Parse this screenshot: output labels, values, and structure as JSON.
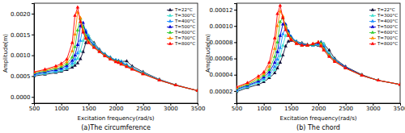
{
  "chart_data": [
    {
      "type": "line",
      "title": "(a)The circumference",
      "xlabel": "Excitation frequency(rad/s)",
      "ylabel": "Amplitude(m)",
      "x": [
        500,
        700,
        900,
        1000,
        1100,
        1200,
        1250,
        1300,
        1350,
        1400,
        1450,
        1500,
        1600,
        1700,
        1800,
        1900,
        2000,
        2050,
        2100,
        2200,
        2300,
        2500,
        2800,
        3100,
        3500
      ],
      "xlim": [
        500,
        3500
      ],
      "xticks": [
        500,
        1000,
        1500,
        2000,
        2500,
        3000,
        3500
      ],
      "ylim": [
        -0.00015,
        0.00225
      ],
      "yticks": [
        {
          "value": 0,
          "label": "0.0000"
        },
        0.0005,
        {
          "value": 0.001,
          "label": "0.0010"
        },
        0.0015,
        {
          "value": 0.002,
          "label": "0.0020"
        }
      ],
      "grid": false,
      "legend": "upper right",
      "marker": "triangle",
      "line_style": "solid",
      "series": [
        {
          "name": "T=22°C",
          "color": "#14143c",
          "values": [
            0.0005,
            0.00054,
            0.00058,
            0.00061,
            0.00065,
            0.00071,
            0.00075,
            0.00081,
            0.00091,
            0.00108,
            0.0013,
            0.00145,
            0.0013,
            0.00114,
            0.00103,
            0.00095,
            0.00088,
            0.00085,
            0.00085,
            0.00086,
            0.00074,
            0.0006,
            0.00042,
            0.00029,
            0.00015
          ]
        },
        {
          "name": "T=300°C",
          "color": "#40e0d0",
          "values": [
            0.00052,
            0.00056,
            0.0006,
            0.00063,
            0.00068,
            0.00076,
            0.00082,
            0.00092,
            0.0011,
            0.00135,
            0.00158,
            0.00148,
            0.00127,
            0.00113,
            0.00103,
            0.00095,
            0.00089,
            0.00087,
            0.00086,
            0.00078,
            0.0007,
            0.00058,
            0.00041,
            0.00028,
            0.00015
          ]
        },
        {
          "name": "T=400°C",
          "color": "#1e90ff",
          "values": [
            0.00053,
            0.00058,
            0.00062,
            0.00066,
            0.00071,
            0.00081,
            0.0009,
            0.00105,
            0.00135,
            0.00168,
            0.0016,
            0.00143,
            0.00124,
            0.00112,
            0.00102,
            0.00094,
            0.00088,
            0.00087,
            0.00084,
            0.00076,
            0.00069,
            0.00057,
            0.00041,
            0.00028,
            0.00015
          ]
        },
        {
          "name": "T=500°C",
          "color": "#0000cd",
          "values": [
            0.00055,
            0.0006,
            0.00065,
            0.00069,
            0.00075,
            0.00087,
            0.001,
            0.00125,
            0.0017,
            0.00178,
            0.00155,
            0.00139,
            0.00122,
            0.00111,
            0.00101,
            0.00093,
            0.00087,
            0.00086,
            0.00082,
            0.00075,
            0.00068,
            0.00056,
            0.0004,
            0.00028,
            0.00015
          ]
        },
        {
          "name": "T=600°C",
          "color": "#32cd32",
          "values": [
            0.00057,
            0.00062,
            0.00068,
            0.00072,
            0.00079,
            0.00095,
            0.0012,
            0.0016,
            0.00188,
            0.00168,
            0.00147,
            0.00135,
            0.0012,
            0.0011,
            0.001,
            0.00092,
            0.00086,
            0.00085,
            0.0008,
            0.00074,
            0.00067,
            0.00056,
            0.0004,
            0.00028,
            0.00015
          ]
        },
        {
          "name": "T=700°C",
          "color": "#ff8c00",
          "values": [
            0.00059,
            0.00064,
            0.00071,
            0.00076,
            0.00084,
            0.0011,
            0.0015,
            0.00203,
            0.0019,
            0.0016,
            0.00143,
            0.00132,
            0.00119,
            0.00109,
            0.00099,
            0.00091,
            0.00085,
            0.00083,
            0.00079,
            0.00073,
            0.00067,
            0.00055,
            0.0004,
            0.00028,
            0.00015
          ]
        },
        {
          "name": "T=800°C",
          "color": "#ff0000",
          "values": [
            0.0006,
            0.00066,
            0.00074,
            0.0008,
            0.0009,
            0.0013,
            0.00195,
            0.00215,
            0.0018,
            0.00155,
            0.0014,
            0.0013,
            0.00118,
            0.00108,
            0.00098,
            0.0009,
            0.00084,
            0.00082,
            0.00078,
            0.00072,
            0.00066,
            0.00055,
            0.0004,
            0.00028,
            0.00015
          ]
        }
      ]
    },
    {
      "type": "line",
      "title": "(b) The chord",
      "xlabel": "Excitation frequency(rad/s)",
      "ylabel": "Amplitude(m)",
      "x": [
        500,
        700,
        900,
        1000,
        1100,
        1200,
        1250,
        1300,
        1350,
        1400,
        1450,
        1500,
        1600,
        1700,
        1800,
        1900,
        2000,
        2050,
        2100,
        2200,
        2300,
        2500,
        2800,
        3100,
        3500
      ],
      "xlim": [
        500,
        3500
      ],
      "xticks": [
        500,
        1000,
        1500,
        2000,
        2500,
        3000,
        3500
      ],
      "ylim": [
        5e-06,
        0.000128
      ],
      "yticks": [
        2e-05,
        4e-05,
        6e-05,
        8e-05,
        {
          "value": 0.0001,
          "label": "0.00010"
        },
        0.00012
      ],
      "grid": false,
      "legend": "upper right",
      "marker": "triangle",
      "line_style": "solid",
      "series": [
        {
          "name": "T=22°C",
          "color": "#14143c",
          "values": [
            1.9e-05,
            2.4e-05,
            2.8e-05,
            3.1e-05,
            3.6e-05,
            4.2e-05,
            4.8e-05,
            5.5e-05,
            6.4e-05,
            7.5e-05,
            8.1e-05,
            8.2e-05,
            8.1e-05,
            7.9e-05,
            7.7e-05,
            7.6e-05,
            7.6e-05,
            7.7e-05,
            7.8e-05,
            7e-05,
            6e-05,
            5e-05,
            4e-05,
            3.3e-05,
            2.8e-05
          ]
        },
        {
          "name": "T=300°C",
          "color": "#40e0d0",
          "values": [
            2e-05,
            2.5e-05,
            3e-05,
            3.3e-05,
            3.8e-05,
            4.6e-05,
            5.3e-05,
            6.3e-05,
            7.6e-05,
            8.8e-05,
            9e-05,
            8.7e-05,
            8.1e-05,
            7.8e-05,
            7.6e-05,
            7.6e-05,
            7.7e-05,
            7.9e-05,
            7.8e-05,
            6.6e-05,
            5.9e-05,
            4.9e-05,
            3.9e-05,
            3.3e-05,
            2.8e-05
          ]
        },
        {
          "name": "T=400°C",
          "color": "#1e90ff",
          "values": [
            2.1e-05,
            2.6e-05,
            3.1e-05,
            3.5e-05,
            4e-05,
            5e-05,
            5.9e-05,
            7.3e-05,
            9e-05,
            9.8e-05,
            9.4e-05,
            8.7e-05,
            8e-05,
            7.7e-05,
            7.6e-05,
            7.6e-05,
            7.8e-05,
            8e-05,
            7.5e-05,
            6.5e-05,
            5.8e-05,
            4.9e-05,
            3.9e-05,
            3.3e-05,
            2.8e-05
          ]
        },
        {
          "name": "T=500°C",
          "color": "#0000cd",
          "values": [
            2.2e-05,
            2.7e-05,
            3.2e-05,
            3.7e-05,
            4.3e-05,
            5.5e-05,
            6.8e-05,
            8.8e-05,
            0.000102,
            0.000102,
            9.3e-05,
            8.6e-05,
            8e-05,
            7.7e-05,
            7.6e-05,
            7.7e-05,
            7.9e-05,
            8e-05,
            7.3e-05,
            6.4e-05,
            5.8e-05,
            4.9e-05,
            3.9e-05,
            3.3e-05,
            2.8e-05
          ]
        },
        {
          "name": "T=600°C",
          "color": "#32cd32",
          "values": [
            2.3e-05,
            2.8e-05,
            3.4e-05,
            3.9e-05,
            4.6e-05,
            6.2e-05,
            8e-05,
            0.000105,
            0.00011,
            0.0001,
            9.1e-05,
            8.5e-05,
            7.9e-05,
            7.6e-05,
            7.6e-05,
            7.7e-05,
            8e-05,
            7.9e-05,
            7.2e-05,
            6.4e-05,
            5.7e-05,
            4.8e-05,
            3.9e-05,
            3.3e-05,
            2.8e-05
          ]
        },
        {
          "name": "T=700°C",
          "color": "#ff8c00",
          "values": [
            2.4e-05,
            2.9e-05,
            3.6e-05,
            4.1e-05,
            5e-05,
            7.2e-05,
            0.0001,
            0.000118,
            0.000112,
            9.8e-05,
            9e-05,
            8.4e-05,
            7.9e-05,
            7.6e-05,
            7.6e-05,
            7.8e-05,
            8e-05,
            7.7e-05,
            7.1e-05,
            6.3e-05,
            5.7e-05,
            4.8e-05,
            3.9e-05,
            3.3e-05,
            2.8e-05
          ]
        },
        {
          "name": "T=800°C",
          "color": "#ff0000",
          "values": [
            2.5e-05,
            3e-05,
            3.8e-05,
            4.3e-05,
            5.5e-05,
            8.5e-05,
            0.000115,
            0.000125,
            0.00011,
            9.5e-05,
            8.8e-05,
            8.3e-05,
            7.8e-05,
            7.6e-05,
            7.6e-05,
            7.8e-05,
            8e-05,
            7.5e-05,
            7e-05,
            6.2e-05,
            5.6e-05,
            4.8e-05,
            3.9e-05,
            3.3e-05,
            2.8e-05
          ]
        }
      ]
    }
  ]
}
